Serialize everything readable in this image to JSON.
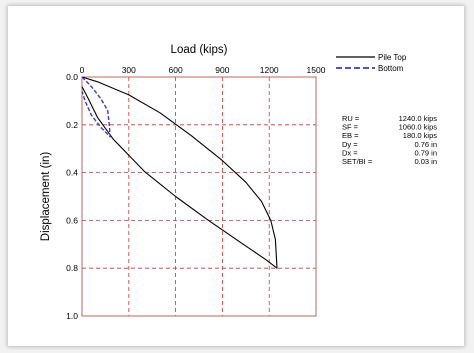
{
  "chart_data": {
    "type": "line",
    "xlabel": "Load (kips)",
    "ylabel": "Displacement (in)",
    "xlim": [
      0,
      1500
    ],
    "ylim": [
      0.0,
      1.0
    ],
    "y_inverted": true,
    "x_ticks": [
      "0",
      "300",
      "600",
      "900",
      "1200",
      "1500"
    ],
    "y_ticks": [
      "0.0",
      "0.2",
      "0.4",
      "0.6",
      "0.8",
      "1.0"
    ],
    "grid": "dashed",
    "legend_placement": "top-right",
    "series": [
      {
        "name": "Pile Top",
        "style": "solid",
        "color": "#000000",
        "points": [
          [
            0,
            0.0
          ],
          [
            100,
            0.02
          ],
          [
            300,
            0.075
          ],
          [
            500,
            0.15
          ],
          [
            700,
            0.245
          ],
          [
            900,
            0.35
          ],
          [
            1050,
            0.44
          ],
          [
            1150,
            0.52
          ],
          [
            1210,
            0.6
          ],
          [
            1240,
            0.68
          ],
          [
            1250,
            0.8
          ],
          [
            1180,
            0.765
          ],
          [
            1000,
            0.685
          ],
          [
            800,
            0.595
          ],
          [
            600,
            0.5
          ],
          [
            400,
            0.395
          ],
          [
            200,
            0.26
          ],
          [
            100,
            0.17
          ],
          [
            40,
            0.09
          ],
          [
            0,
            0.04
          ]
        ]
      },
      {
        "name": "Bottom",
        "style": "dashed",
        "color": "#3a3ac8",
        "points": [
          [
            0,
            0.0
          ],
          [
            60,
            0.04
          ],
          [
            120,
            0.09
          ],
          [
            165,
            0.14
          ],
          [
            175,
            0.2
          ],
          [
            180,
            0.25
          ],
          [
            120,
            0.21
          ],
          [
            60,
            0.16
          ],
          [
            20,
            0.1
          ],
          [
            0,
            0.06
          ]
        ]
      }
    ],
    "stats": [
      {
        "label": "RU =",
        "value": "1240.0 kips"
      },
      {
        "label": "SF =",
        "value": "1060.0 kips"
      },
      {
        "label": "EB =",
        "value": "180.0 kips"
      },
      {
        "label": "Dy =",
        "value": "0.76 in"
      },
      {
        "label": "Dx =",
        "value": "0.79 in"
      },
      {
        "label": "SET/BI =",
        "value": "0.03 in"
      }
    ],
    "colors": {
      "axis_frame": "#b86a5e",
      "grid": "#cc3333"
    }
  }
}
